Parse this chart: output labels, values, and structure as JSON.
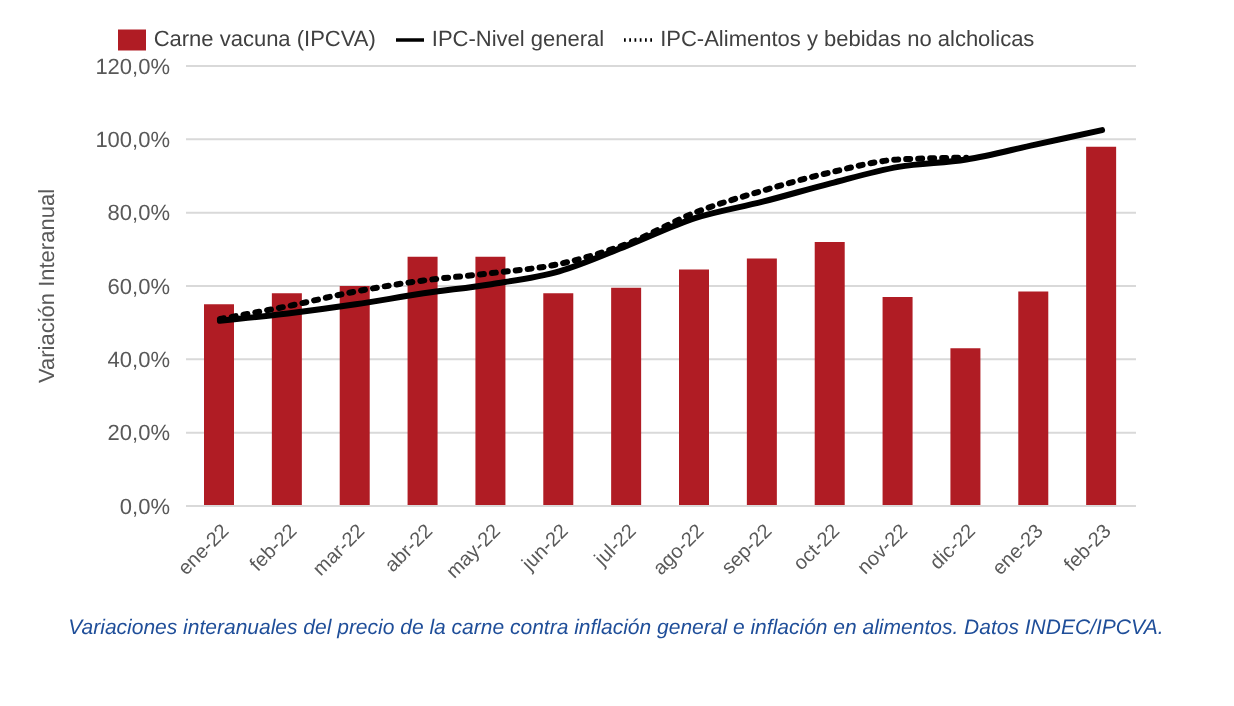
{
  "chart_data": {
    "type": "bar",
    "ylabel": "Variación Interanual",
    "categories": [
      "ene-22",
      "feb-22",
      "mar-22",
      "abr-22",
      "may-22",
      "jun-22",
      "jul-22",
      "ago-22",
      "sep-22",
      "oct-22",
      "nov-22",
      "dic-22",
      "ene-23",
      "feb-23"
    ],
    "series": [
      {
        "name": "Carne vacuna (IPCVA)",
        "color": "#b01c24",
        "values": [
          55,
          58,
          60,
          68,
          68,
          58,
          59.5,
          64.5,
          67.5,
          72,
          57,
          43,
          58.5,
          98
        ]
      },
      {
        "name": "IPC-Nivel general",
        "type": "line",
        "color": "#000000",
        "line_style": "solid",
        "values": [
          50.5,
          52.5,
          55,
          58,
          60.5,
          64,
          71,
          78.5,
          83,
          88,
          92.5,
          94.5,
          98.5,
          102.5
        ]
      },
      {
        "name": "IPC-Alimentos y bebidas no alcholicas",
        "type": "line",
        "color": "#000000",
        "line_style": "dotted",
        "values": [
          51,
          54.5,
          58.5,
          61.5,
          63.5,
          66,
          71.5,
          80,
          86,
          91,
          94.5,
          95,
          null,
          null
        ]
      }
    ],
    "ylim": [
      0,
      120
    ],
    "yticks": [
      {
        "value": 0,
        "label": "0,0%"
      },
      {
        "value": 20,
        "label": "20,0%"
      },
      {
        "value": 40,
        "label": "40,0%"
      },
      {
        "value": 60,
        "label": "60,0%"
      },
      {
        "value": 80,
        "label": "80,0%"
      },
      {
        "value": 100,
        "label": "100,0%"
      },
      {
        "value": 120,
        "label": "120,0%"
      }
    ],
    "grid": "y",
    "legend": "top",
    "marker": "none",
    "annotations": [
      "Variaciones interanuales del precio de la carne contra inflación general e inflación en alimentos. Datos INDEC/IPCVA."
    ]
  }
}
